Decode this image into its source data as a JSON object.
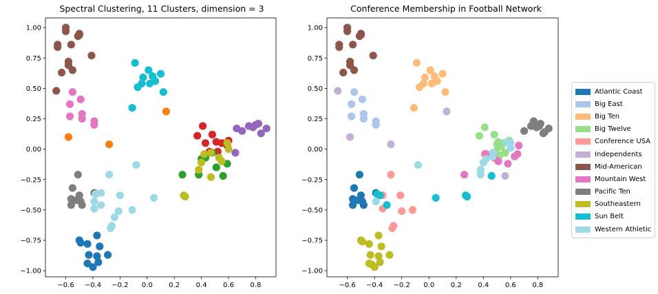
{
  "chart_data": [
    {
      "type": "scatter",
      "title": "Spectral Clustering, 11 Clusters, dimension = 3",
      "xlabel": "",
      "ylabel": "",
      "xlim": [
        -0.75,
        0.95
      ],
      "ylim": [
        -1.05,
        1.08
      ],
      "xticks": [
        "−0.6",
        "−0.4",
        "−0.2",
        "0.0",
        "0.2",
        "0.4",
        "0.6",
        "0.8"
      ],
      "yticks": [
        "−1.00",
        "−0.75",
        "−0.50",
        "−0.25",
        "0.00",
        "0.25",
        "0.50",
        "0.75",
        "1.00"
      ],
      "xtick_values": [
        -0.6,
        -0.4,
        -0.2,
        0.0,
        0.2,
        0.4,
        0.6,
        0.8
      ],
      "ytick_values": [
        -1.0,
        -0.75,
        -0.5,
        -0.25,
        0.0,
        0.25,
        0.5,
        0.75,
        1.0
      ],
      "grid": false,
      "series": [
        {
          "color": "#8c564b",
          "points": [
            [
              -0.6,
              1.0
            ],
            [
              -0.6,
              0.97
            ],
            [
              -0.66,
              0.86
            ],
            [
              -0.66,
              0.84
            ],
            [
              -0.56,
              0.86
            ],
            [
              -0.5,
              0.94
            ],
            [
              -0.5,
              0.95
            ],
            [
              -0.51,
              0.93
            ],
            [
              -0.41,
              0.77
            ],
            [
              -0.58,
              0.72
            ],
            [
              -0.58,
              0.69
            ],
            [
              -0.63,
              0.63
            ],
            [
              -0.55,
              0.65
            ],
            [
              -0.67,
              0.48
            ]
          ]
        },
        {
          "color": "#17becf",
          "points": [
            [
              -0.09,
              0.71
            ],
            [
              0.01,
              0.65
            ],
            [
              -0.03,
              0.59
            ],
            [
              0.04,
              0.6
            ],
            [
              0.1,
              0.62
            ],
            [
              0.02,
              0.54
            ],
            [
              0.06,
              0.56
            ],
            [
              -0.04,
              0.54
            ],
            [
              -0.07,
              0.51
            ],
            [
              0.12,
              0.47
            ],
            [
              -0.11,
              0.34
            ]
          ]
        },
        {
          "color": "#e377c2",
          "points": [
            [
              -0.55,
              0.47
            ],
            [
              -0.49,
              0.41
            ],
            [
              -0.57,
              0.37
            ],
            [
              -0.48,
              0.29
            ],
            [
              -0.57,
              0.27
            ],
            [
              -0.48,
              0.25
            ],
            [
              -0.39,
              0.23
            ],
            [
              -0.39,
              0.2
            ]
          ]
        },
        {
          "color": "#ff7f0e",
          "points": [
            [
              0.14,
              0.31
            ],
            [
              -0.58,
              0.1
            ],
            [
              -0.28,
              0.04
            ]
          ]
        },
        {
          "color": "#9467bd",
          "points": [
            [
              0.8,
              0.2
            ],
            [
              0.82,
              0.21
            ],
            [
              0.88,
              0.17
            ],
            [
              0.84,
              0.13
            ],
            [
              0.75,
              0.19
            ],
            [
              0.7,
              0.15
            ],
            [
              0.78,
              0.18
            ],
            [
              0.66,
              0.17
            ],
            [
              0.65,
              -0.03
            ]
          ]
        },
        {
          "color": "#d62728",
          "points": [
            [
              0.41,
              0.19
            ],
            [
              0.37,
              0.11
            ],
            [
              0.48,
              0.12
            ],
            [
              0.51,
              0.06
            ],
            [
              0.6,
              0.07
            ],
            [
              0.55,
              0.05
            ],
            [
              0.43,
              0.05
            ],
            [
              0.59,
              0.03
            ],
            [
              0.52,
              -0.02
            ],
            [
              0.46,
              -0.02
            ]
          ]
        },
        {
          "color": "#2ca02c",
          "points": [
            [
              0.43,
              -0.07
            ],
            [
              0.4,
              -0.08
            ],
            [
              0.59,
              -0.12
            ],
            [
              0.51,
              -0.15
            ],
            [
              0.56,
              -0.22
            ],
            [
              0.38,
              -0.21
            ],
            [
              0.26,
              -0.21
            ],
            [
              0.48,
              -0.03
            ]
          ]
        },
        {
          "color": "#bcbd22",
          "points": [
            [
              0.47,
              -0.03
            ],
            [
              0.42,
              -0.04
            ],
            [
              0.38,
              -0.17
            ],
            [
              0.4,
              -0.11
            ],
            [
              0.6,
              0.0
            ],
            [
              0.59,
              0.05
            ],
            [
              0.53,
              -0.07
            ],
            [
              0.55,
              -0.1
            ],
            [
              0.47,
              -0.23
            ],
            [
              0.27,
              -0.38
            ],
            [
              0.28,
              -0.39
            ]
          ]
        },
        {
          "color": "#7f7f7f",
          "points": [
            [
              -0.51,
              -0.21
            ],
            [
              -0.55,
              -0.32
            ],
            [
              -0.5,
              -0.38
            ],
            [
              -0.52,
              -0.42
            ],
            [
              -0.56,
              -0.41
            ],
            [
              -0.49,
              -0.43
            ],
            [
              -0.48,
              -0.46
            ],
            [
              -0.56,
              -0.46
            ],
            [
              -0.39,
              -0.36
            ]
          ]
        },
        {
          "color": "#9edae5",
          "points": [
            [
              -0.08,
              -0.13
            ],
            [
              -0.28,
              -0.21
            ],
            [
              -0.34,
              -0.36
            ],
            [
              -0.38,
              -0.37
            ],
            [
              -0.2,
              -0.38
            ],
            [
              -0.39,
              -0.43
            ],
            [
              -0.34,
              -0.46
            ],
            [
              -0.39,
              -0.49
            ],
            [
              -0.21,
              -0.51
            ],
            [
              -0.11,
              -0.5
            ],
            [
              0.05,
              -0.4
            ],
            [
              -0.24,
              -0.56
            ],
            [
              -0.26,
              -0.63
            ],
            [
              -0.27,
              -0.65
            ]
          ]
        },
        {
          "color": "#1f77b4",
          "points": [
            [
              -0.37,
              -0.71
            ],
            [
              -0.5,
              -0.75
            ],
            [
              -0.49,
              -0.77
            ],
            [
              -0.44,
              -0.78
            ],
            [
              -0.35,
              -0.8
            ],
            [
              -0.43,
              -0.87
            ],
            [
              -0.37,
              -0.88
            ],
            [
              -0.29,
              -0.87
            ],
            [
              -0.44,
              -0.94
            ],
            [
              -0.36,
              -0.93
            ],
            [
              -0.4,
              -0.97
            ]
          ]
        }
      ]
    },
    {
      "type": "scatter",
      "title": "Conference Membership in Football Network",
      "xlabel": "",
      "ylabel": "",
      "xlim": [
        -0.75,
        0.95
      ],
      "ylim": [
        -1.05,
        1.08
      ],
      "xticks": [
        "−0.6",
        "−0.4",
        "−0.2",
        "0.0",
        "0.2",
        "0.4",
        "0.6",
        "0.8"
      ],
      "yticks": [
        "−1.00",
        "−0.75",
        "−0.50",
        "−0.25",
        "0.00",
        "0.25",
        "0.50",
        "0.75",
        "1.00"
      ],
      "xtick_values": [
        -0.6,
        -0.4,
        -0.2,
        0.0,
        0.2,
        0.4,
        0.6,
        0.8
      ],
      "ytick_values": [
        -1.0,
        -0.75,
        -0.5,
        -0.25,
        0.0,
        0.25,
        0.5,
        0.75,
        1.0
      ],
      "grid": false,
      "legend_position": "outside-right",
      "series": [
        {
          "name": "Atlantic Coast",
          "color": "#1f77b4",
          "points": [
            [
              -0.51,
              -0.21
            ],
            [
              -0.55,
              -0.32
            ],
            [
              -0.5,
              -0.38
            ],
            [
              -0.52,
              -0.42
            ],
            [
              -0.56,
              -0.41
            ],
            [
              -0.49,
              -0.43
            ],
            [
              -0.48,
              -0.46
            ],
            [
              -0.56,
              -0.46
            ],
            [
              -0.39,
              -0.36
            ]
          ]
        },
        {
          "name": "Big East",
          "color": "#aec7e8",
          "points": [
            [
              -0.55,
              0.47
            ],
            [
              -0.49,
              0.41
            ],
            [
              -0.57,
              0.37
            ],
            [
              -0.48,
              0.29
            ],
            [
              -0.57,
              0.27
            ],
            [
              -0.48,
              0.25
            ],
            [
              -0.39,
              0.23
            ],
            [
              -0.39,
              0.2
            ]
          ]
        },
        {
          "name": "Big Ten",
          "color": "#ffbb78",
          "points": [
            [
              -0.09,
              0.71
            ],
            [
              0.01,
              0.65
            ],
            [
              -0.03,
              0.59
            ],
            [
              0.04,
              0.6
            ],
            [
              0.1,
              0.62
            ],
            [
              0.02,
              0.54
            ],
            [
              0.06,
              0.56
            ],
            [
              -0.04,
              0.54
            ],
            [
              -0.07,
              0.51
            ],
            [
              0.12,
              0.47
            ],
            [
              -0.11,
              0.34
            ]
          ]
        },
        {
          "name": "Big Twelve",
          "color": "#98df8a",
          "points": [
            [
              0.37,
              0.11
            ],
            [
              0.41,
              0.18
            ],
            [
              0.48,
              0.12
            ],
            [
              0.51,
              0.06
            ],
            [
              0.55,
              0.05
            ],
            [
              0.59,
              0.07
            ],
            [
              0.53,
              0.02
            ],
            [
              0.49,
              -0.02
            ],
            [
              0.52,
              -0.05
            ],
            [
              0.5,
              0.04
            ],
            [
              0.56,
              -0.03
            ]
          ]
        },
        {
          "name": "Conference USA",
          "color": "#ff9896",
          "points": [
            [
              -0.28,
              -0.21
            ],
            [
              -0.21,
              -0.38
            ],
            [
              -0.34,
              -0.38
            ],
            [
              -0.34,
              -0.49
            ],
            [
              -0.2,
              -0.51
            ],
            [
              -0.12,
              -0.5
            ],
            [
              -0.26,
              -0.63
            ],
            [
              -0.27,
              -0.65
            ],
            [
              0.41,
              -0.04
            ]
          ]
        },
        {
          "name": "Independents",
          "color": "#c5b0d5",
          "points": [
            [
              -0.67,
              0.48
            ],
            [
              0.13,
              0.31
            ],
            [
              -0.58,
              0.1
            ],
            [
              -0.28,
              0.04
            ],
            [
              0.56,
              -0.22
            ]
          ]
        },
        {
          "name": "Mid-American",
          "color": "#8c564b",
          "points": [
            [
              -0.6,
              1.0
            ],
            [
              -0.6,
              0.97
            ],
            [
              -0.66,
              0.86
            ],
            [
              -0.66,
              0.84
            ],
            [
              -0.56,
              0.86
            ],
            [
              -0.5,
              0.94
            ],
            [
              -0.5,
              0.95
            ],
            [
              -0.51,
              0.93
            ],
            [
              -0.41,
              0.77
            ],
            [
              -0.58,
              0.72
            ],
            [
              -0.58,
              0.69
            ],
            [
              -0.63,
              0.63
            ],
            [
              -0.55,
              0.65
            ]
          ]
        },
        {
          "name": "Mountain West",
          "color": "#e377c2",
          "points": [
            [
              0.42,
              -0.04
            ],
            [
              0.48,
              -0.07
            ],
            [
              0.51,
              -0.1
            ],
            [
              0.58,
              -0.12
            ],
            [
              0.65,
              -0.04
            ],
            [
              0.63,
              -0.06
            ],
            [
              0.66,
              0.03
            ],
            [
              0.26,
              -0.21
            ]
          ]
        },
        {
          "name": "Pacific Ten",
          "color": "#7f7f7f",
          "points": [
            [
              0.75,
              0.19
            ],
            [
              0.77,
              0.23
            ],
            [
              0.8,
              0.2
            ],
            [
              0.82,
              0.21
            ],
            [
              0.88,
              0.17
            ],
            [
              0.84,
              0.13
            ],
            [
              0.85,
              0.14
            ],
            [
              0.7,
              0.15
            ],
            [
              0.81,
              0.19
            ],
            [
              0.79,
              0.18
            ]
          ]
        },
        {
          "name": "Southeastern",
          "color": "#bcbd22",
          "points": [
            [
              -0.37,
              -0.71
            ],
            [
              -0.5,
              -0.75
            ],
            [
              -0.49,
              -0.76
            ],
            [
              -0.44,
              -0.78
            ],
            [
              -0.35,
              -0.8
            ],
            [
              -0.43,
              -0.87
            ],
            [
              -0.37,
              -0.88
            ],
            [
              -0.29,
              -0.87
            ],
            [
              -0.44,
              -0.94
            ],
            [
              -0.36,
              -0.93
            ],
            [
              -0.4,
              -0.97
            ],
            [
              -0.42,
              -0.95
            ]
          ]
        },
        {
          "name": "Sun Belt",
          "color": "#17becf",
          "points": [
            [
              -0.38,
              -0.37
            ],
            [
              -0.36,
              -0.38
            ],
            [
              -0.31,
              -0.46
            ],
            [
              0.46,
              -0.22
            ],
            [
              0.05,
              -0.4
            ],
            [
              0.27,
              -0.38
            ],
            [
              0.28,
              -0.39
            ]
          ]
        },
        {
          "name": "Western Athletic",
          "color": "#9edae5",
          "points": [
            [
              -0.39,
              -0.43
            ],
            [
              -0.08,
              -0.13
            ],
            [
              0.38,
              -0.17
            ],
            [
              0.38,
              -0.21
            ],
            [
              0.4,
              -0.11
            ],
            [
              0.47,
              -0.03
            ],
            [
              0.47,
              -0.06
            ],
            [
              0.57,
              0.06
            ],
            [
              0.6,
              0.01
            ],
            [
              0.6,
              0.05
            ],
            [
              0.42,
              -0.08
            ]
          ]
        }
      ]
    }
  ]
}
